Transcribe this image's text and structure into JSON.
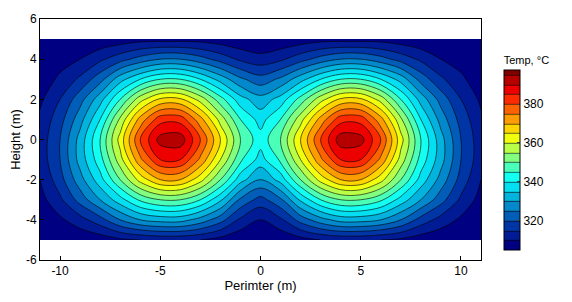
{
  "chart_data": {
    "type": "contour",
    "xlabel": "Perimter (m)",
    "ylabel": "Height (m)",
    "xlim": [
      -11,
      11
    ],
    "xticks": [
      -10,
      -5,
      0,
      5,
      10
    ],
    "ylim": [
      -6,
      6
    ],
    "yticks": [
      -6,
      -4,
      -2,
      0,
      2,
      4,
      6
    ],
    "x": [
      -11,
      -10,
      -9,
      -8,
      -7,
      -6,
      -5,
      -4,
      -3,
      -2,
      -1,
      0,
      1,
      2,
      3,
      4,
      5,
      6,
      7,
      8,
      9,
      10,
      11
    ],
    "y": [
      -5,
      -4,
      -3,
      -2,
      -1,
      0,
      1,
      2,
      3,
      4,
      5
    ],
    "z": [
      [
        305,
        305,
        306,
        307,
        309,
        310,
        311,
        311,
        310,
        308,
        306,
        306,
        306,
        308,
        310,
        311,
        311,
        310,
        309,
        307,
        306,
        305,
        305
      ],
      [
        306,
        309,
        313,
        318,
        325,
        330,
        332,
        332,
        328,
        322,
        314,
        310,
        314,
        322,
        328,
        332,
        332,
        330,
        325,
        318,
        313,
        309,
        306
      ],
      [
        308,
        314,
        322,
        330,
        338,
        346,
        350,
        350,
        345,
        336,
        324,
        318,
        324,
        336,
        345,
        350,
        350,
        346,
        338,
        330,
        322,
        314,
        308
      ],
      [
        310,
        318,
        328,
        338,
        350,
        362,
        370,
        370,
        362,
        350,
        337,
        330,
        337,
        350,
        362,
        370,
        370,
        362,
        350,
        338,
        328,
        318,
        310
      ],
      [
        312,
        320,
        332,
        343,
        358,
        374,
        385,
        385,
        374,
        360,
        346,
        338,
        346,
        360,
        374,
        385,
        385,
        374,
        358,
        343,
        332,
        320,
        312
      ],
      [
        312,
        320,
        332,
        345,
        362,
        380,
        392,
        393,
        380,
        365,
        350,
        342,
        350,
        365,
        380,
        393,
        392,
        380,
        362,
        345,
        332,
        320,
        312
      ],
      [
        311,
        318,
        328,
        340,
        356,
        372,
        383,
        383,
        372,
        358,
        345,
        338,
        345,
        358,
        372,
        383,
        383,
        372,
        356,
        340,
        328,
        318,
        311
      ],
      [
        309,
        315,
        323,
        333,
        345,
        358,
        366,
        366,
        358,
        347,
        337,
        332,
        337,
        347,
        358,
        366,
        366,
        358,
        345,
        333,
        323,
        315,
        309
      ],
      [
        307,
        311,
        316,
        323,
        333,
        340,
        345,
        345,
        340,
        333,
        326,
        322,
        326,
        333,
        340,
        345,
        345,
        340,
        333,
        323,
        316,
        311,
        307
      ],
      [
        306,
        308,
        310,
        314,
        318,
        322,
        325,
        325,
        322,
        318,
        314,
        312,
        314,
        318,
        322,
        325,
        325,
        322,
        318,
        314,
        310,
        308,
        306
      ],
      [
        305,
        305,
        306,
        306,
        307,
        308,
        308,
        308,
        308,
        307,
        306,
        305,
        306,
        307,
        308,
        308,
        308,
        308,
        307,
        306,
        306,
        305,
        305
      ]
    ],
    "colorbar_title": "Temp, °C",
    "colorbar_range": [
      305,
      396
    ],
    "colorbar_ticks": [
      320,
      340,
      360,
      380
    ],
    "color": "Jet"
  }
}
